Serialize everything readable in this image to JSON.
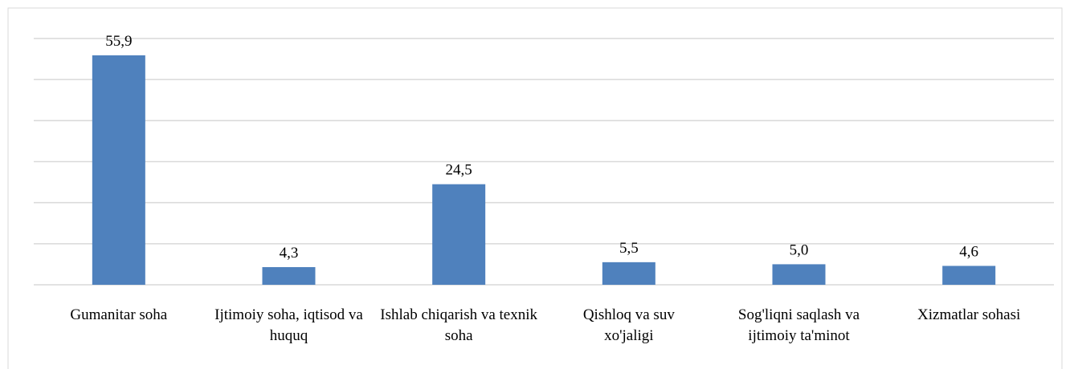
{
  "chart_data": {
    "type": "bar",
    "categories": [
      "Gumanitar soha",
      "Ijtimoiy soha, iqtisod va huquq",
      "Ishlab chiqarish va texnik soha",
      "Qishloq va suv xo'jaligi",
      "Sog'liqni saqlash va ijtimoiy ta'minot",
      "Xizmatlar sohasi"
    ],
    "values": [
      55.9,
      4.3,
      24.5,
      5.5,
      5.0,
      4.6
    ],
    "value_labels": [
      "55,9",
      "4,3",
      "24,5",
      "5,5",
      "5,0",
      "4,6"
    ],
    "color": "#4f81bd",
    "ylim": [
      0,
      60
    ],
    "yticks": [
      0,
      10,
      20,
      30,
      40,
      50,
      60
    ],
    "grid": true
  }
}
